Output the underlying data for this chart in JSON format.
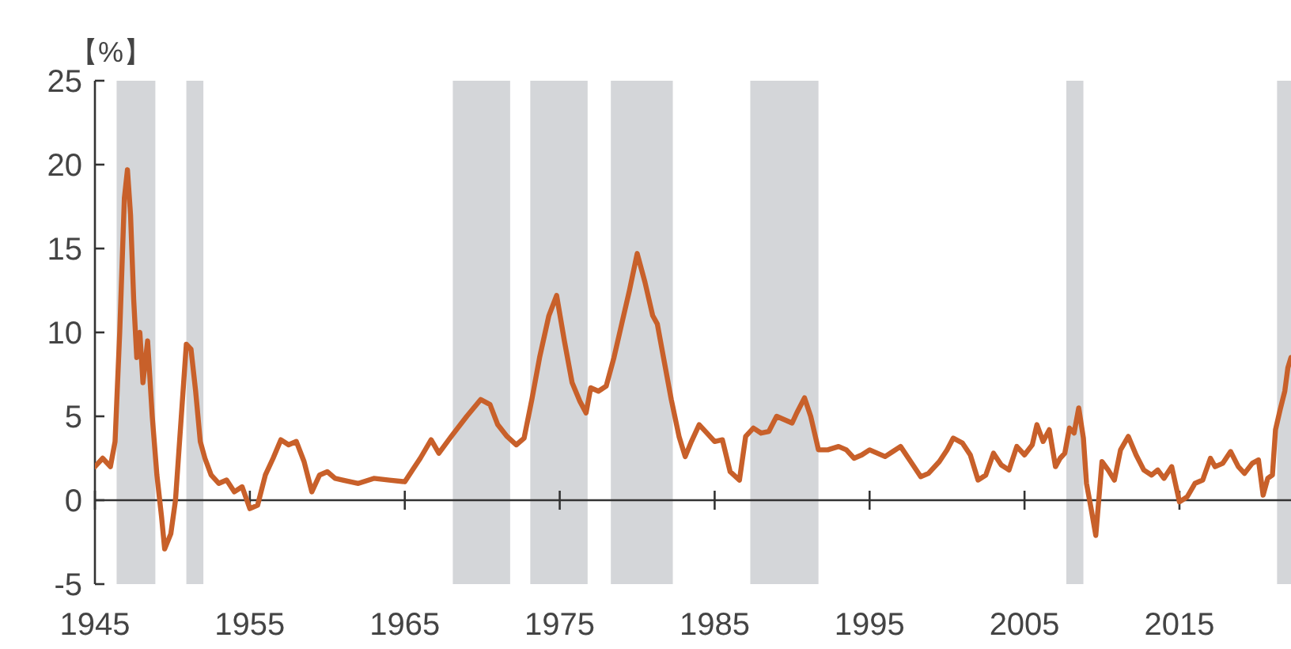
{
  "chart_data": {
    "type": "line",
    "ylabel": "【%】",
    "x": [
      1945.0,
      1945.5,
      1946.0,
      1946.3,
      1946.6,
      1946.9,
      1947.1,
      1947.3,
      1947.5,
      1947.7,
      1947.9,
      1948.1,
      1948.4,
      1948.7,
      1949.0,
      1949.3,
      1949.5,
      1949.9,
      1950.2,
      1950.5,
      1950.9,
      1951.2,
      1951.5,
      1951.8,
      1952.1,
      1952.5,
      1953.0,
      1953.5,
      1954.0,
      1954.5,
      1955.0,
      1955.5,
      1956.0,
      1956.5,
      1957.0,
      1957.5,
      1958.0,
      1958.5,
      1959.0,
      1959.5,
      1960.0,
      1960.5,
      1961.0,
      1962.0,
      1963.0,
      1964.0,
      1965.0,
      1965.5,
      1966.0,
      1966.7,
      1967.2,
      1968.0,
      1969.0,
      1969.9,
      1970.5,
      1971.0,
      1971.6,
      1972.2,
      1972.7,
      1973.2,
      1973.7,
      1974.3,
      1974.8,
      1975.3,
      1975.8,
      1976.3,
      1976.7,
      1977.0,
      1977.5,
      1978.0,
      1978.5,
      1979.0,
      1979.5,
      1980.0,
      1980.5,
      1981.0,
      1981.3,
      1981.7,
      1982.2,
      1982.7,
      1983.1,
      1983.5,
      1984.0,
      1984.5,
      1985.0,
      1985.5,
      1986.0,
      1986.6,
      1987.0,
      1987.5,
      1988.0,
      1988.5,
      1989.0,
      1989.5,
      1990.0,
      1990.3,
      1990.8,
      1991.2,
      1991.7,
      1992.3,
      1993.0,
      1993.5,
      1994.0,
      1994.5,
      1995.0,
      1995.5,
      1996.0,
      1996.5,
      1997.0,
      1997.8,
      1998.3,
      1998.8,
      1999.5,
      2000.0,
      2000.4,
      2001.0,
      2001.5,
      2002.0,
      2002.5,
      2003.0,
      2003.5,
      2004.0,
      2004.5,
      2005.0,
      2005.5,
      2005.8,
      2006.2,
      2006.6,
      2007.0,
      2007.3,
      2007.6,
      2007.9,
      2008.2,
      2008.5,
      2008.8,
      2009.0,
      2009.3,
      2009.6,
      2010.0,
      2010.4,
      2010.8,
      2011.2,
      2011.7,
      2012.2,
      2012.7,
      2013.2,
      2013.6,
      2014.0,
      2014.5,
      2015.0,
      2015.5,
      2016.0,
      2016.5,
      2017.0,
      2017.3,
      2017.8,
      2018.3,
      2018.8,
      2019.2,
      2019.7,
      2020.1,
      2020.4,
      2020.7,
      2021.0,
      2021.2,
      2021.5,
      2021.8,
      2022.0,
      2022.2
    ],
    "series": [
      {
        "color": "#c8602a",
        "values": [
          2.0,
          2.5,
          2.0,
          3.5,
          10,
          18,
          19.7,
          17,
          12,
          8.5,
          10,
          7,
          9.5,
          5,
          1.5,
          -1,
          -2.9,
          -2,
          0,
          4,
          9.3,
          9,
          6.5,
          3.5,
          2.5,
          1.5,
          1.0,
          1.2,
          0.5,
          0.8,
          -0.5,
          -0.3,
          1.5,
          2.5,
          3.6,
          3.3,
          3.5,
          2.3,
          0.5,
          1.5,
          1.7,
          1.3,
          1.2,
          1.0,
          1.3,
          1.2,
          1.1,
          1.8,
          2.5,
          3.6,
          2.8,
          3.8,
          5.0,
          6.0,
          5.7,
          4.5,
          3.8,
          3.3,
          3.7,
          6,
          8.5,
          11,
          12.2,
          9.5,
          7.0,
          5.9,
          5.2,
          6.7,
          6.5,
          6.8,
          8.5,
          10.5,
          12.5,
          14.7,
          13.0,
          11,
          10.5,
          8.5,
          6,
          3.8,
          2.6,
          3.5,
          4.5,
          4.0,
          3.5,
          3.6,
          1.7,
          1.2,
          3.8,
          4.3,
          4.0,
          4.1,
          5.0,
          4.8,
          4.6,
          5.2,
          6.1,
          5.0,
          3.0,
          3.0,
          3.2,
          3.0,
          2.5,
          2.7,
          3.0,
          2.8,
          2.6,
          2.9,
          3.2,
          2.1,
          1.4,
          1.6,
          2.3,
          3.0,
          3.7,
          3.4,
          2.7,
          1.2,
          1.5,
          2.8,
          2.1,
          1.8,
          3.2,
          2.7,
          3.3,
          4.5,
          3.5,
          4.2,
          2.0,
          2.5,
          2.8,
          4.3,
          4.0,
          5.5,
          3.7,
          1.0,
          -0.5,
          -2.1,
          2.3,
          1.8,
          1.2,
          3.0,
          3.8,
          2.7,
          1.8,
          1.5,
          1.8,
          1.3,
          2.0,
          -0.1,
          0.2,
          1.0,
          1.2,
          2.5,
          2.0,
          2.2,
          2.9,
          2.0,
          1.6,
          2.2,
          2.4,
          0.3,
          1.3,
          1.5,
          4.2,
          5.4,
          6.5,
          7.9,
          8.5
        ]
      }
    ],
    "xlim": [
      1945,
      2022.2
    ],
    "xticks": [
      1945,
      1955,
      1965,
      1975,
      1985,
      1995,
      2005,
      2015
    ],
    "ylim": [
      -5,
      25
    ],
    "yticks": [
      -5,
      0,
      5,
      10,
      15,
      20,
      25
    ],
    "bands": [
      {
        "axis": "x",
        "from": 1946.4,
        "to": 1948.9,
        "color": "#d4d6d9"
      },
      {
        "axis": "x",
        "from": 1950.9,
        "to": 1952.0,
        "color": "#d4d6d9"
      },
      {
        "axis": "x",
        "from": 1968.1,
        "to": 1971.8,
        "color": "#d4d6d9"
      },
      {
        "axis": "x",
        "from": 1973.1,
        "to": 1976.8,
        "color": "#d4d6d9"
      },
      {
        "axis": "x",
        "from": 1978.3,
        "to": 1982.3,
        "color": "#d4d6d9"
      },
      {
        "axis": "x",
        "from": 1987.3,
        "to": 1991.7,
        "color": "#d4d6d9"
      },
      {
        "axis": "x",
        "from": 2007.7,
        "to": 2008.8,
        "color": "#d4d6d9"
      },
      {
        "axis": "x",
        "from": 2021.3,
        "to": 2022.2,
        "color": "#d4d6d9"
      }
    ],
    "line_style": "solid"
  }
}
